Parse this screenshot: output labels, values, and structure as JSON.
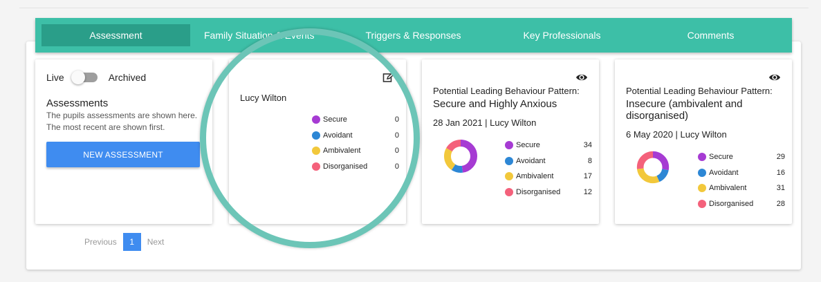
{
  "tabs": [
    {
      "label": "Assessment",
      "active": true
    },
    {
      "label": "Family Situation & Events",
      "active": false
    },
    {
      "label": "Triggers & Responses",
      "active": false
    },
    {
      "label": "Key Professionals",
      "active": false
    },
    {
      "label": "Comments",
      "active": false
    }
  ],
  "sidebar": {
    "live_label": "Live",
    "archived_label": "Archived",
    "title": "Assessments",
    "description": "The pupils assessments are shown here. The most recent are shown first.",
    "new_button": "NEW ASSESSMENT"
  },
  "colors": {
    "secure": "#a63bd3",
    "avoidant": "#2d87d5",
    "ambivalent": "#f2c83b",
    "disorganised": "#f4617b",
    "accent": "#3dbfa7"
  },
  "legend_labels": [
    "Secure",
    "Avoidant",
    "Ambivalent",
    "Disorganised"
  ],
  "cards": [
    {
      "name": "Lucy Wilton",
      "counts": [
        "0",
        "0",
        "0",
        "0"
      ]
    },
    {
      "pattern_label": "Potential Leading Behaviour Pattern:",
      "pattern_value": "Secure and Highly Anxious",
      "date_line": "28 Jan 2021 | Lucy Wilton",
      "counts": [
        "34",
        "8",
        "17",
        "12"
      ]
    },
    {
      "pattern_label": "Potential Leading Behaviour Pattern:",
      "pattern_value": "Insecure (ambivalent and disorganised)",
      "date_line": "6 May 2020 | Lucy Wilton",
      "counts": [
        "29",
        "16",
        "31",
        "28"
      ]
    }
  ],
  "pagination": {
    "previous": "Previous",
    "current": "1",
    "next": "Next"
  }
}
